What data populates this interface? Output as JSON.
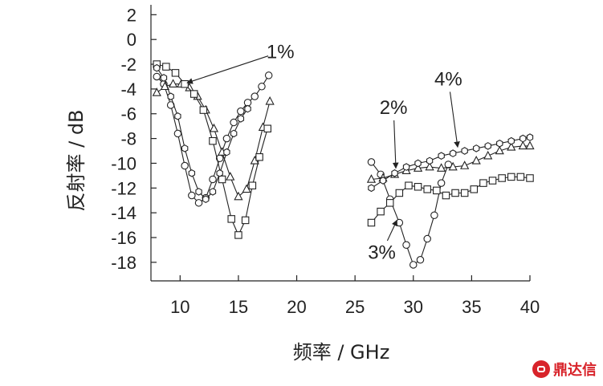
{
  "chart_data": {
    "type": "line",
    "xlabel": "频率 / GHz",
    "ylabel": "反射率 / dB",
    "xlim": [
      7.5,
      40
    ],
    "ylim": [
      -19.5,
      2.8
    ],
    "x_ticks": [
      10,
      15,
      20,
      25,
      30,
      35,
      40
    ],
    "y_ticks": [
      2,
      0,
      -2,
      -4,
      -6,
      -8,
      -10,
      -12,
      -14,
      -16,
      -18
    ],
    "grid": false,
    "series": [
      {
        "name": "1%",
        "marker": "circle",
        "segments": [
          {
            "x": [
              8,
              8.6,
              9.2,
              9.8,
              10.4,
              11,
              11.6,
              12.2,
              12.8,
              13.4,
              14,
              14.6,
              15.2,
              15.8,
              16.4,
              17,
              17.6
            ],
            "y": [
              -3.0,
              -3.6,
              -5.3,
              -7.6,
              -10.2,
              -12.6,
              -13.2,
              -12.8,
              -11.3,
              -9.6,
              -8.0,
              -6.7,
              -5.8,
              -5.1,
              -4.6,
              -3.8,
              -2.9
            ]
          },
          {
            "x": [
              26.4,
              27.2,
              28,
              28.8,
              29.4,
              30,
              30.6,
              31.2,
              31.8,
              32.4,
              33
            ],
            "y": [
              -9.9,
              -10.9,
              -12.9,
              -14.8,
              -16.6,
              -18.2,
              -17.8,
              -16.1,
              -14.2,
              -11.6,
              -10.1
            ]
          }
        ]
      },
      {
        "name": "2%",
        "marker": "triangle",
        "segments": [
          {
            "x": [
              8,
              8.7,
              9.4,
              10.1,
              10.8,
              11.5,
              12.2,
              12.9,
              13.6,
              14.3,
              15,
              15.7,
              16.4,
              17.1,
              17.7
            ],
            "y": [
              -4.3,
              -3.8,
              -3.6,
              -3.6,
              -3.9,
              -4.6,
              -5.7,
              -7.2,
              -9.1,
              -11.1,
              -12.7,
              -12.1,
              -9.8,
              -7.1,
              -5.0
            ]
          },
          {
            "x": [
              26.4,
              27.4,
              28.4,
              29.4,
              30.4,
              31.4,
              32.4,
              33.4,
              34.4,
              35.4,
              36.4,
              37.4,
              38.4,
              39.4,
              40
            ],
            "y": [
              -11.3,
              -11.2,
              -10.9,
              -10.6,
              -10.4,
              -10.3,
              -10.4,
              -10.3,
              -10.2,
              -9.8,
              -9.4,
              -9.0,
              -8.7,
              -8.6,
              -8.6
            ]
          }
        ]
      },
      {
        "name": "3%",
        "marker": "square",
        "segments": [
          {
            "x": [
              8,
              8.8,
              9.6,
              10.4,
              11.2,
              12,
              12.8,
              13.6,
              14.4,
              15,
              15.6,
              16.2,
              16.8,
              17.5
            ],
            "y": [
              -2.0,
              -2.2,
              -2.7,
              -3.6,
              -4.4,
              -5.7,
              -8.2,
              -11.3,
              -14.5,
              -15.8,
              -14.6,
              -11.8,
              -9.5,
              -7.2
            ]
          },
          {
            "x": [
              26.4,
              27.2,
              28,
              28.8,
              29.6,
              30.4,
              31.2,
              32,
              32.8,
              33.6,
              34.4,
              35.2,
              36,
              36.8,
              37.6,
              38.4,
              39.2,
              40
            ],
            "y": [
              -14.8,
              -13.9,
              -13.2,
              -12.4,
              -11.8,
              -11.9,
              -12.1,
              -12.2,
              -12.6,
              -12.4,
              -12.4,
              -12.1,
              -11.6,
              -11.4,
              -11.2,
              -11.1,
              -11.1,
              -11.2
            ]
          }
        ]
      },
      {
        "name": "4%",
        "marker": "hexagon",
        "segments": [
          {
            "x": [
              8,
              8.6,
              9.2,
              9.8,
              10.4,
              11,
              11.6,
              12.2,
              12.8,
              13.4,
              14,
              14.6,
              15.2,
              15.8
            ],
            "y": [
              -2.3,
              -3.1,
              -4.6,
              -6.2,
              -8.8,
              -10.8,
              -12.3,
              -12.9,
              -12.3,
              -10.8,
              -9.1,
              -7.6,
              -6.4,
              -5.6
            ]
          },
          {
            "x": [
              26.4,
              27.4,
              28.4,
              29.4,
              30.4,
              31.4,
              32.4,
              33.4,
              34.4,
              35.4,
              36.4,
              37.4,
              38.4,
              39.4,
              40
            ],
            "y": [
              -12.0,
              -11.4,
              -10.8,
              -10.3,
              -10.0,
              -9.8,
              -9.4,
              -9.2,
              -9.0,
              -8.8,
              -8.6,
              -8.4,
              -8.2,
              -8.0,
              -7.9
            ]
          }
        ]
      }
    ],
    "annotations": [
      {
        "text": "1%",
        "x": 18.6,
        "y": -1.0,
        "arrow_to": {
          "x": 10.6,
          "y": -3.5
        }
      },
      {
        "text": "2%",
        "x": 28.3,
        "y": -5.5,
        "arrow_to": {
          "x": 28.5,
          "y": -10.4
        }
      },
      {
        "text": "3%",
        "x": 27.3,
        "y": -17.2,
        "arrow_to": {
          "x": 28.6,
          "y": -14.6
        }
      },
      {
        "text": "4%",
        "x": 33.0,
        "y": -3.2,
        "arrow_to": {
          "x": 33.8,
          "y": -8.7
        }
      }
    ]
  },
  "watermark": {
    "text": "鼎达信",
    "color": "#d8232a"
  }
}
